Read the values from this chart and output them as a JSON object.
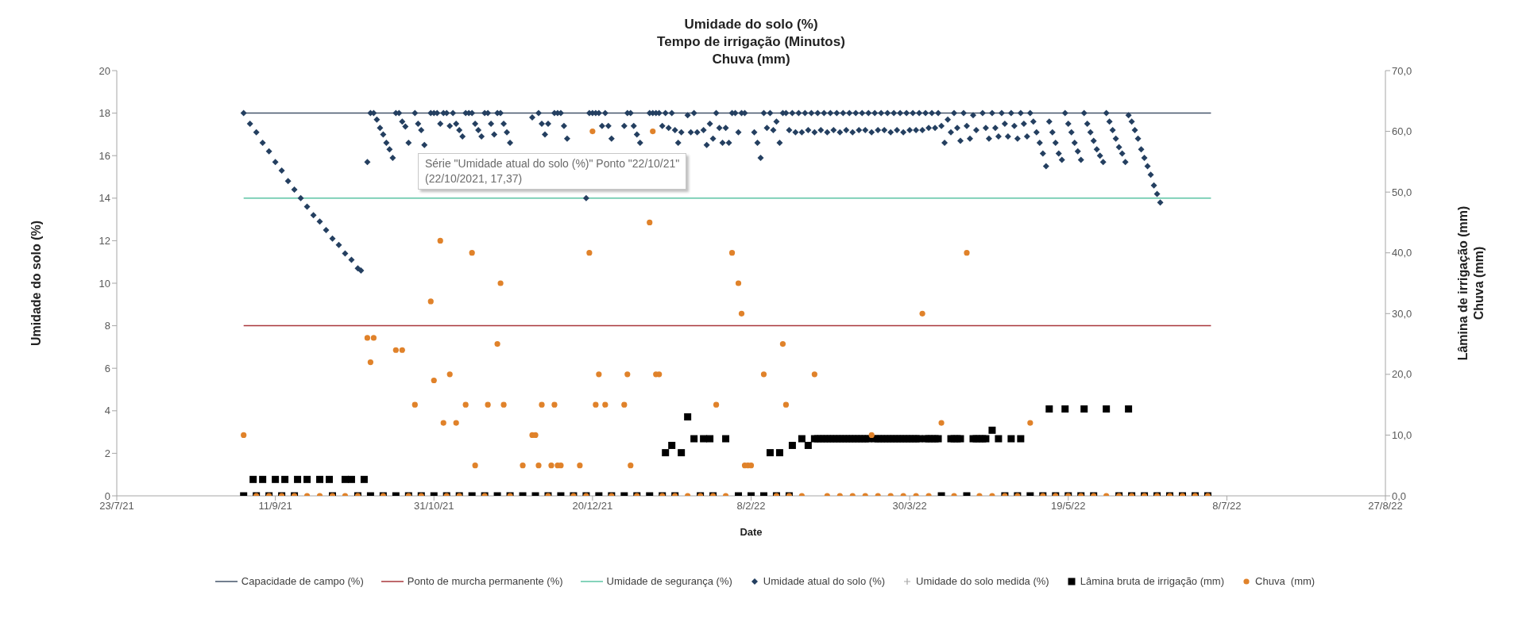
{
  "chart_data": {
    "type": "scatter",
    "title": "Umidade do solo (%)\nTempo de irrigação (Minutos)\nChuva (mm)",
    "xlabel": "Date",
    "ylabel": "Umidade do solo (%)",
    "y2label": "Lâmina de irrigação (mm)\nChuva (mm)",
    "xlim": [
      "2021-07-23",
      "2022-08-27"
    ],
    "xticks": [
      {
        "value": "2021-07-23",
        "label": "23/7/21"
      },
      {
        "value": "2021-09-11",
        "label": "11/9/21"
      },
      {
        "value": "2021-10-31",
        "label": "31/10/21"
      },
      {
        "value": "2021-12-20",
        "label": "20/12/21"
      },
      {
        "value": "2022-02-08",
        "label": "8/2/22"
      },
      {
        "value": "2022-03-30",
        "label": "30/3/22"
      },
      {
        "value": "2022-05-19",
        "label": "19/5/22"
      },
      {
        "value": "2022-07-08",
        "label": "8/7/22"
      },
      {
        "value": "2022-08-27",
        "label": "27/8/22"
      }
    ],
    "ylim": [
      0,
      20
    ],
    "yticks": [
      0,
      2,
      4,
      6,
      8,
      10,
      12,
      14,
      16,
      18,
      20
    ],
    "y2lim": [
      0,
      70
    ],
    "y2ticks": [
      {
        "value": 0,
        "label": "0,0"
      },
      {
        "value": 10,
        "label": "10,0"
      },
      {
        "value": 20,
        "label": "20,0"
      },
      {
        "value": 30,
        "label": "30,0"
      },
      {
        "value": 40,
        "label": "40,0"
      },
      {
        "value": 50,
        "label": "50,0"
      },
      {
        "value": 60,
        "label": "60,0"
      },
      {
        "value": 70,
        "label": "70,0"
      }
    ],
    "legend": "bottom",
    "line_style": "solid",
    "series": [
      {
        "name": "Capacidade de campo (%)",
        "type": "line",
        "marker": "none",
        "color": "#44546a",
        "x": [
          "2021-09-01",
          "2022-07-03"
        ],
        "values": [
          18,
          18
        ]
      },
      {
        "name": "Ponto de murcha permanente (%)",
        "type": "line",
        "marker": "none",
        "color": "#a9373b",
        "x": [
          "2021-09-01",
          "2022-07-03"
        ],
        "values": [
          8,
          8
        ]
      },
      {
        "name": "Umidade de segurança (%)",
        "type": "line",
        "marker": "none",
        "color": "#5cc4a4",
        "x": [
          "2021-09-01",
          "2022-07-03"
        ],
        "values": [
          14,
          14
        ]
      },
      {
        "name": "Umidade atual do solo (%)",
        "marker": "diamond",
        "color": "#243f60",
        "x": [
          "2021-09-01",
          "2021-09-03",
          "2021-09-05",
          "2021-09-07",
          "2021-09-09",
          "2021-09-11",
          "2021-09-13",
          "2021-09-15",
          "2021-09-17",
          "2021-09-19",
          "2021-09-21",
          "2021-09-23",
          "2021-09-25",
          "2021-09-27",
          "2021-09-29",
          "2021-10-01",
          "2021-10-03",
          "2021-10-05",
          "2021-10-07",
          "2021-10-08",
          "2021-10-10",
          "2021-10-11",
          "2021-10-12",
          "2021-10-13",
          "2021-10-14",
          "2021-10-15",
          "2021-10-16",
          "2021-10-17",
          "2021-10-18",
          "2021-10-19",
          "2021-10-20",
          "2021-10-21",
          "2021-10-22",
          "2021-10-23",
          "2021-10-25",
          "2021-10-26",
          "2021-10-27",
          "2021-10-28",
          "2021-10-30",
          "2021-10-31",
          "2021-11-01",
          "2021-11-02",
          "2021-11-03",
          "2021-11-04",
          "2021-11-05",
          "2021-11-06",
          "2021-11-07",
          "2021-11-08",
          "2021-11-09",
          "2021-11-10",
          "2021-11-11",
          "2021-11-12",
          "2021-11-13",
          "2021-11-14",
          "2021-11-15",
          "2021-11-16",
          "2021-11-17",
          "2021-11-18",
          "2021-11-19",
          "2021-11-20",
          "2021-11-21",
          "2021-11-22",
          "2021-11-23",
          "2021-11-24",
          "2021-12-01",
          "2021-12-03",
          "2021-12-04",
          "2021-12-05",
          "2021-12-06",
          "2021-12-08",
          "2021-12-09",
          "2021-12-10",
          "2021-12-11",
          "2021-12-12",
          "2021-12-18",
          "2021-12-19",
          "2021-12-20",
          "2021-12-21",
          "2021-12-22",
          "2021-12-23",
          "2021-12-24",
          "2021-12-25",
          "2021-12-26",
          "2021-12-30",
          "2021-12-31",
          "2022-01-01",
          "2022-01-02",
          "2022-01-03",
          "2022-01-04",
          "2022-01-07",
          "2022-01-08",
          "2022-01-09",
          "2022-01-10",
          "2022-01-11",
          "2022-01-12",
          "2022-01-13",
          "2022-01-14",
          "2022-01-15",
          "2022-01-16",
          "2022-01-17",
          "2022-01-19",
          "2022-01-20",
          "2022-01-21",
          "2022-01-22",
          "2022-01-24",
          "2022-01-25",
          "2022-01-26",
          "2022-01-27",
          "2022-01-28",
          "2022-01-29",
          "2022-01-30",
          "2022-01-31",
          "2022-02-01",
          "2022-02-02",
          "2022-02-03",
          "2022-02-04",
          "2022-02-05",
          "2022-02-06",
          "2022-02-09",
          "2022-02-10",
          "2022-02-11",
          "2022-02-12",
          "2022-02-13",
          "2022-02-14",
          "2022-02-15",
          "2022-02-16",
          "2022-02-17",
          "2022-02-18",
          "2022-02-19",
          "2022-02-20",
          "2022-02-21",
          "2022-02-22",
          "2022-02-23",
          "2022-02-24",
          "2022-02-25",
          "2022-02-26",
          "2022-02-27",
          "2022-02-28",
          "2022-03-01",
          "2022-03-02",
          "2022-03-03",
          "2022-03-04",
          "2022-03-05",
          "2022-03-06",
          "2022-03-07",
          "2022-03-08",
          "2022-03-09",
          "2022-03-10",
          "2022-03-11",
          "2022-03-12",
          "2022-03-13",
          "2022-03-14",
          "2022-03-15",
          "2022-03-16",
          "2022-03-17",
          "2022-03-18",
          "2022-03-19",
          "2022-03-20",
          "2022-03-21",
          "2022-03-22",
          "2022-03-23",
          "2022-03-24",
          "2022-03-25",
          "2022-03-26",
          "2022-03-27",
          "2022-03-28",
          "2022-03-29",
          "2022-03-30",
          "2022-03-31",
          "2022-04-01",
          "2022-04-02",
          "2022-04-03",
          "2022-04-04",
          "2022-04-05",
          "2022-04-06",
          "2022-04-07",
          "2022-04-08",
          "2022-04-09",
          "2022-04-10",
          "2022-04-11",
          "2022-04-12",
          "2022-04-13",
          "2022-04-14",
          "2022-04-15",
          "2022-04-16",
          "2022-04-17",
          "2022-04-18",
          "2022-04-19",
          "2022-04-20",
          "2022-04-22",
          "2022-04-23",
          "2022-04-24",
          "2022-04-25",
          "2022-04-26",
          "2022-04-27",
          "2022-04-28",
          "2022-04-29",
          "2022-04-30",
          "2022-05-01",
          "2022-05-02",
          "2022-05-03",
          "2022-05-04",
          "2022-05-05",
          "2022-05-06",
          "2022-05-07",
          "2022-05-08",
          "2022-05-09",
          "2022-05-10",
          "2022-05-11",
          "2022-05-12",
          "2022-05-13",
          "2022-05-14",
          "2022-05-15",
          "2022-05-16",
          "2022-05-17",
          "2022-05-18",
          "2022-05-19",
          "2022-05-20",
          "2022-05-21",
          "2022-05-22",
          "2022-05-23",
          "2022-05-24",
          "2022-05-25",
          "2022-05-26",
          "2022-05-27",
          "2022-05-28",
          "2022-05-29",
          "2022-05-30",
          "2022-05-31",
          "2022-06-01",
          "2022-06-02",
          "2022-06-03",
          "2022-06-04",
          "2022-06-05",
          "2022-06-06",
          "2022-06-07",
          "2022-06-08",
          "2022-06-09",
          "2022-06-10",
          "2022-06-11",
          "2022-06-12",
          "2022-06-13",
          "2022-06-14",
          "2022-06-15",
          "2022-06-16",
          "2022-06-17"
        ],
        "values": [
          18.0,
          17.5,
          17.1,
          16.6,
          16.2,
          15.7,
          15.3,
          14.8,
          14.4,
          14.0,
          13.6,
          13.2,
          12.9,
          12.5,
          12.1,
          11.8,
          11.4,
          11.1,
          10.7,
          10.6,
          15.7,
          18,
          18,
          17.7,
          17.3,
          17.0,
          16.6,
          16.3,
          15.9,
          18,
          18,
          17.6,
          17.37,
          16.6,
          18,
          17.5,
          17.2,
          16.5,
          18,
          18,
          18,
          17.5,
          18,
          18,
          17.4,
          18,
          17.5,
          17.2,
          16.9,
          18,
          18,
          18,
          17.5,
          17.2,
          16.9,
          18,
          18,
          17.5,
          17.0,
          18,
          18,
          17.5,
          17.1,
          16.6,
          17.8,
          18,
          17.5,
          17.0,
          17.5,
          18,
          18,
          18,
          17.4,
          16.8,
          14.0,
          18,
          18,
          18,
          18,
          17.4,
          18,
          17.4,
          16.8,
          17.4,
          18,
          18,
          17.4,
          17.0,
          16.6,
          18,
          18,
          18,
          18,
          17.4,
          18,
          17.3,
          18,
          17.2,
          16.6,
          17.1,
          17.9,
          17.1,
          18,
          17.1,
          17.2,
          16.5,
          17.5,
          16.8,
          18,
          17.3,
          16.6,
          17.3,
          16.6,
          18,
          18,
          17.1,
          18,
          18,
          17.1,
          16.6,
          15.9,
          18,
          17.3,
          18,
          17.2,
          17.6,
          16.6,
          18,
          18,
          17.2,
          18,
          17.1,
          18,
          17.1,
          18,
          17.2,
          18,
          17.1,
          18,
          17.2,
          18,
          17.1,
          18,
          17.2,
          18,
          17.1,
          18,
          17.2,
          18,
          17.1,
          18,
          17.2,
          18,
          17.2,
          18,
          17.1,
          18,
          17.2,
          18,
          17.2,
          18,
          17.1,
          18,
          17.2,
          18,
          17.1,
          18,
          17.2,
          18,
          17.2,
          18,
          17.2,
          18,
          17.3,
          18,
          17.3,
          18,
          17.4,
          16.6,
          17.7,
          17.1,
          18,
          17.3,
          16.7,
          18,
          17.4,
          16.8,
          17.9,
          17.2,
          18,
          17.3,
          16.8,
          18,
          17.3,
          16.9,
          18,
          17.5,
          16.9,
          18,
          17.4,
          16.8,
          18,
          17.5,
          16.9,
          18,
          17.6,
          17.1,
          16.6,
          16.1,
          15.5,
          17.6,
          17.1,
          16.6,
          16.1,
          15.8,
          18,
          17.5,
          17.1,
          16.6,
          16.2,
          15.8,
          18,
          17.5,
          17.1,
          16.7,
          16.3,
          16.0,
          15.7,
          18,
          17.6,
          17.2,
          16.8,
          16.4,
          16.1,
          15.7,
          17.9,
          17.6,
          17.2,
          16.8,
          16.3,
          15.9,
          15.5,
          15.1,
          14.6,
          14.2,
          13.8
        ]
      },
      {
        "name": "Umidade do solo medida (%)",
        "marker": "cross",
        "color": "#a6a6a6"
      },
      {
        "name": "Lâmina bruta de irrigação (mm)",
        "marker": "square",
        "color": "#000000",
        "axis": "y2",
        "x": [
          "2021-09-01",
          "2021-09-05",
          "2021-09-09",
          "2021-09-13",
          "2021-09-17",
          "2021-09-29",
          "2021-10-07",
          "2021-10-11",
          "2021-10-15",
          "2021-10-19",
          "2021-10-23",
          "2021-10-27",
          "2021-10-31",
          "2021-11-04",
          "2021-11-08",
          "2021-11-12",
          "2021-11-16",
          "2021-11-20",
          "2021-11-24",
          "2021-11-28",
          "2021-12-02",
          "2021-12-06",
          "2021-12-10",
          "2021-12-14",
          "2021-12-18",
          "2021-12-22",
          "2021-12-26",
          "2021-12-30",
          "2022-01-03",
          "2022-01-07",
          "2022-01-11",
          "2022-01-15",
          "2022-01-23",
          "2022-01-27",
          "2022-02-04",
          "2022-02-08",
          "2022-02-12",
          "2022-02-16",
          "2022-02-20",
          "2022-04-09",
          "2022-04-17",
          "2022-04-29",
          "2022-05-03",
          "2022-05-07",
          "2022-05-11",
          "2022-05-15",
          "2022-05-19",
          "2022-05-23",
          "2022-05-27",
          "2022-06-04",
          "2022-06-08",
          "2022-06-12",
          "2022-06-16",
          "2022-06-20",
          "2022-06-24",
          "2022-06-28",
          "2022-07-02",
          "2021-09-04",
          "2021-09-07",
          "2021-09-11",
          "2021-09-14",
          "2021-09-18",
          "2021-09-21",
          "2021-09-25",
          "2021-09-28",
          "2021-10-03",
          "2021-10-05",
          "2021-10-09",
          "2022-01-12",
          "2022-01-14",
          "2022-01-17",
          "2022-01-19",
          "2022-01-21",
          "2022-01-24",
          "2022-01-26",
          "2022-01-31",
          "2022-02-14",
          "2022-02-17",
          "2022-02-21",
          "2022-02-24",
          "2022-02-26",
          "2022-02-28",
          "2022-03-01",
          "2022-03-02",
          "2022-03-03",
          "2022-03-04",
          "2022-03-05",
          "2022-03-06",
          "2022-03-07",
          "2022-03-08",
          "2022-03-09",
          "2022-03-10",
          "2022-03-11",
          "2022-03-12",
          "2022-03-13",
          "2022-03-14",
          "2022-03-15",
          "2022-03-16",
          "2022-03-17",
          "2022-03-19",
          "2022-03-20",
          "2022-03-21",
          "2022-03-22",
          "2022-03-23",
          "2022-03-24",
          "2022-03-25",
          "2022-03-26",
          "2022-03-27",
          "2022-03-28",
          "2022-03-29",
          "2022-03-30",
          "2022-03-31",
          "2022-04-01",
          "2022-04-02",
          "2022-04-04",
          "2022-04-05",
          "2022-04-06",
          "2022-04-07",
          "2022-04-08",
          "2022-04-12",
          "2022-04-13",
          "2022-04-14",
          "2022-04-15",
          "2022-04-19",
          "2022-04-20",
          "2022-04-21",
          "2022-04-22",
          "2022-04-23",
          "2022-04-25",
          "2022-04-27",
          "2022-05-01",
          "2022-05-04",
          "2022-05-13",
          "2022-05-18",
          "2022-05-24",
          "2022-05-31",
          "2022-06-07"
        ],
        "values": [
          0,
          0,
          0,
          0,
          0,
          0,
          0,
          0,
          0,
          0,
          0,
          0,
          0,
          0,
          0,
          0,
          0,
          0,
          0,
          0,
          0,
          0,
          0,
          0,
          0,
          0,
          0,
          0,
          0,
          0,
          0,
          0,
          0,
          0,
          0,
          0,
          0,
          0,
          0,
          0,
          0,
          0,
          0,
          0,
          0,
          0,
          0,
          0,
          0,
          0,
          0,
          0,
          0,
          0,
          0,
          0,
          0,
          2.7,
          2.7,
          2.7,
          2.7,
          2.7,
          2.7,
          2.7,
          2.7,
          2.7,
          2.7,
          2.7,
          7.1,
          8.3,
          7.1,
          13.0,
          9.4,
          9.4,
          9.4,
          9.4,
          7.1,
          7.1,
          8.3,
          9.4,
          8.3,
          9.4,
          9.4,
          9.4,
          9.4,
          9.4,
          9.4,
          9.4,
          9.4,
          9.4,
          9.4,
          9.4,
          9.4,
          9.4,
          9.4,
          9.4,
          9.4,
          9.4,
          9.4,
          9.4,
          9.4,
          9.4,
          9.4,
          9.4,
          9.4,
          9.4,
          9.4,
          9.4,
          9.4,
          9.4,
          9.4,
          9.4,
          9.4,
          9.4,
          9.4,
          9.4,
          9.4,
          9.4,
          9.4,
          9.4,
          9.4,
          9.4,
          9.4,
          9.4,
          9.4,
          9.4,
          9.4,
          9.4,
          10.8,
          9.4,
          9.4,
          9.4,
          14.3,
          14.3,
          14.3,
          14.3,
          14.3
        ]
      },
      {
        "name": "Chuva  (mm)",
        "marker": "circle",
        "color": "#e0822a",
        "axis": "y2",
        "x": [
          "2021-09-05",
          "2021-09-09",
          "2021-09-13",
          "2021-09-17",
          "2021-09-21",
          "2021-09-25",
          "2021-09-29",
          "2021-10-03",
          "2021-10-07",
          "2021-10-15",
          "2021-10-23",
          "2021-10-27",
          "2021-11-04",
          "2021-11-08",
          "2021-11-16",
          "2021-11-24",
          "2021-12-06",
          "2021-12-14",
          "2021-12-18",
          "2021-12-26",
          "2022-01-03",
          "2022-01-11",
          "2022-01-15",
          "2022-01-19",
          "2022-01-23",
          "2022-01-27",
          "2022-01-31",
          "2022-02-16",
          "2022-02-20",
          "2022-02-24",
          "2022-03-04",
          "2022-03-08",
          "2022-03-12",
          "2022-03-16",
          "2022-03-20",
          "2022-03-24",
          "2022-03-28",
          "2022-04-01",
          "2022-04-05",
          "2022-04-13",
          "2022-04-21",
          "2022-04-25",
          "2022-04-29",
          "2022-05-03",
          "2022-05-11",
          "2022-05-15",
          "2022-05-19",
          "2022-05-23",
          "2022-05-27",
          "2022-05-31",
          "2022-06-04",
          "2022-06-08",
          "2022-06-12",
          "2022-06-16",
          "2022-06-20",
          "2022-06-24",
          "2022-06-28",
          "2022-07-02",
          "2021-09-01",
          "2021-10-10",
          "2021-10-11",
          "2021-10-12",
          "2021-10-19",
          "2021-10-21",
          "2021-10-25",
          "2021-10-30",
          "2021-10-31",
          "2021-11-02",
          "2021-11-03",
          "2021-11-05",
          "2021-11-07",
          "2021-11-10",
          "2021-11-12",
          "2021-11-13",
          "2021-11-17",
          "2021-11-20",
          "2021-11-21",
          "2021-11-22",
          "2021-11-28",
          "2021-12-01",
          "2021-12-02",
          "2021-12-03",
          "2021-12-04",
          "2021-12-07",
          "2021-12-08",
          "2021-12-09",
          "2021-12-10",
          "2021-12-16",
          "2021-12-19",
          "2021-12-20",
          "2021-12-21",
          "2021-12-22",
          "2021-12-24",
          "2021-12-30",
          "2021-12-31",
          "2022-01-01",
          "2022-01-07",
          "2022-01-08",
          "2022-01-09",
          "2022-01-10",
          "2022-01-28",
          "2022-02-02",
          "2022-02-04",
          "2022-02-05",
          "2022-02-06",
          "2022-02-07",
          "2022-02-08",
          "2022-02-12",
          "2022-02-18",
          "2022-02-19",
          "2022-02-28",
          "2022-03-18",
          "2022-04-03",
          "2022-04-09",
          "2022-04-17",
          "2022-05-07"
        ],
        "values": [
          0,
          0,
          0,
          0,
          0,
          0,
          0,
          0,
          0,
          0,
          0,
          0,
          0,
          0,
          0,
          0,
          0,
          0,
          0,
          0,
          0,
          0,
          0,
          0,
          0,
          0,
          0,
          0,
          0,
          0,
          0,
          0,
          0,
          0,
          0,
          0,
          0,
          0,
          0,
          0,
          0,
          0,
          0,
          0,
          0,
          0,
          0,
          0,
          0,
          0,
          0,
          0,
          0,
          0,
          0,
          0,
          0,
          0,
          10,
          26,
          22,
          26,
          24,
          24,
          15,
          32,
          19,
          42,
          12,
          20,
          12,
          15,
          40,
          5,
          15,
          25,
          35,
          15,
          5,
          10,
          10,
          5,
          15,
          5,
          15,
          5,
          5,
          5,
          40,
          60,
          15,
          20,
          15,
          15,
          20,
          5,
          45,
          60,
          20,
          20,
          15,
          40,
          35,
          30,
          5,
          5,
          5,
          20,
          25,
          15,
          20,
          10,
          30,
          12,
          40,
          12
        ]
      }
    ],
    "annotations": [
      "Série \"Umidade atual do solo (%)\" Ponto \"22/10/21\"\n(22/10/2021, 17,37)"
    ]
  }
}
